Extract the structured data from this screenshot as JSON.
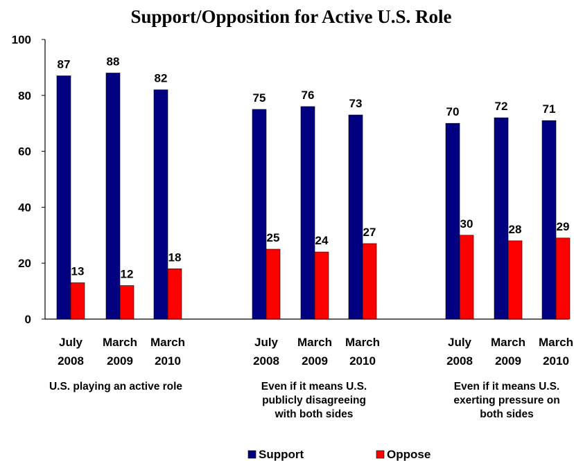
{
  "chart_data": {
    "type": "bar",
    "title": "Support/Opposition for Active U.S. Role",
    "xlabel": "",
    "ylabel": "",
    "ylim": [
      0,
      100
    ],
    "yticks": [
      "0",
      "20",
      "40",
      "60",
      "80",
      "100"
    ],
    "grid": false,
    "legend_position": "bottom",
    "groups": [
      {
        "label_lines": [
          "U.S. playing an active role"
        ],
        "categories": [
          {
            "line1": "July",
            "line2": "2008"
          },
          {
            "line1": "March",
            "line2": "2009"
          },
          {
            "line1": "March",
            "line2": "2010"
          }
        ]
      },
      {
        "label_lines": [
          "Even if it means U.S.",
          "publicly disagreeing",
          "with both sides"
        ],
        "categories": [
          {
            "line1": "July",
            "line2": "2008"
          },
          {
            "line1": "March",
            "line2": "2009"
          },
          {
            "line1": "March",
            "line2": "2010"
          }
        ]
      },
      {
        "label_lines": [
          "Even if it means U.S.",
          "exerting pressure on",
          "both sides"
        ],
        "categories": [
          {
            "line1": "July",
            "line2": "2008"
          },
          {
            "line1": "March",
            "line2": "2009"
          },
          {
            "line1": "March",
            "line2": "2010"
          }
        ]
      }
    ],
    "series": [
      {
        "name": "Support",
        "color": "#000080",
        "values": [
          87,
          88,
          82,
          75,
          76,
          73,
          70,
          72,
          71
        ]
      },
      {
        "name": "Oppose",
        "color": "#ff0000",
        "values": [
          13,
          12,
          18,
          25,
          24,
          27,
          30,
          28,
          29
        ]
      }
    ]
  }
}
